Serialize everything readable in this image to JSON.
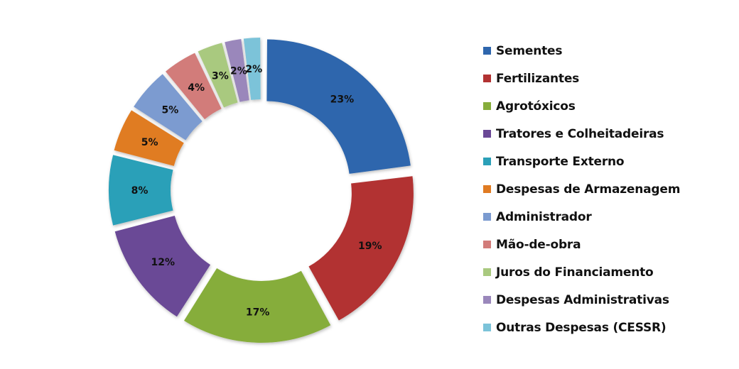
{
  "chart_data": {
    "type": "pie",
    "variant": "exploded-doughnut",
    "title": "",
    "categories": [
      "Sementes",
      "Fertilizantes",
      "Agrotóxicos",
      "Tratores e Colheitadeiras",
      "Transporte Externo",
      "Despesas de Armazenagem",
      "Administrador",
      "Mão-de-obra",
      "Juros do Financiamento",
      "Despesas Administrativas",
      "Outras Despesas (CESSR)"
    ],
    "values": [
      23,
      19,
      17,
      12,
      8,
      5,
      5,
      4,
      3,
      2,
      2
    ],
    "labels": [
      "23%",
      "19%",
      "17%",
      "12%",
      "8%",
      "5%",
      "5%",
      "4%",
      "3%",
      "2%",
      "2%"
    ],
    "colors": [
      "#2e66ad",
      "#b23232",
      "#86ad3b",
      "#6a4896",
      "#2ba0b8",
      "#e07b22",
      "#7b9bd0",
      "#d27c7a",
      "#a9c97f",
      "#9a87bb",
      "#7cc3d9"
    ],
    "legend_position": "right"
  }
}
